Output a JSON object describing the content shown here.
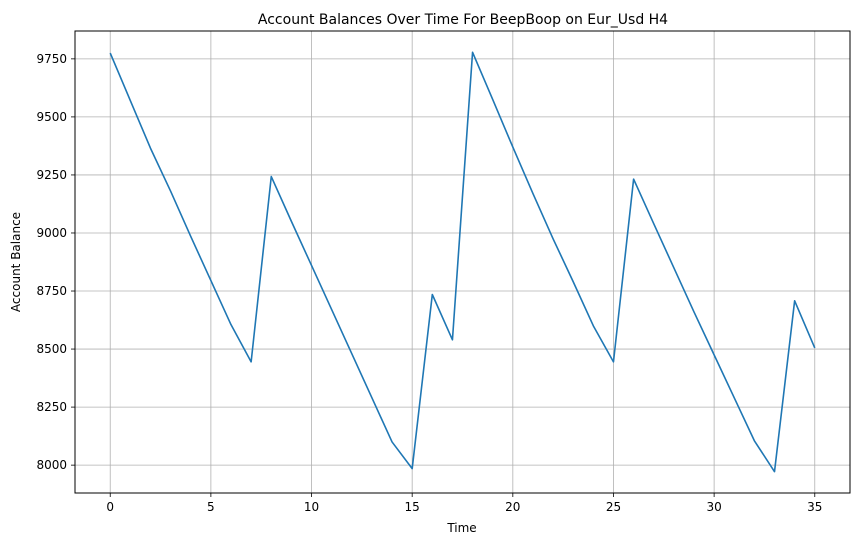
{
  "chart_data": {
    "type": "line",
    "title": "Account Balances Over Time For BeepBoop on Eur_Usd H4",
    "xlabel": "Time",
    "ylabel": "Account Balance",
    "xlim": [
      -1.75,
      36.75
    ],
    "ylim": [
      7880,
      9870
    ],
    "x_ticks": [
      0,
      5,
      10,
      15,
      20,
      25,
      30,
      35
    ],
    "y_ticks": [
      8000,
      8250,
      8500,
      8750,
      9000,
      9250,
      9500,
      9750
    ],
    "grid": true,
    "line_color": "#1f77b4",
    "series": [
      {
        "x": [
          0,
          1,
          2,
          3,
          4,
          5,
          6,
          7,
          8,
          9,
          10,
          11,
          12,
          13,
          14,
          15,
          16,
          17,
          18,
          19,
          20,
          21,
          22,
          23,
          24,
          25,
          26,
          27,
          28,
          29,
          30,
          31,
          32,
          33,
          34,
          35
        ],
        "values": [
          9775,
          9570,
          9365,
          9180,
          8985,
          8795,
          8605,
          8445,
          9243,
          9050,
          8860,
          8670,
          8480,
          8290,
          8100,
          7985,
          8735,
          8540,
          9778,
          9575,
          9370,
          9170,
          8975,
          8790,
          8600,
          8445,
          9232,
          9040,
          8850,
          8660,
          8475,
          8290,
          8105,
          7972,
          8708,
          8505
        ]
      }
    ]
  }
}
